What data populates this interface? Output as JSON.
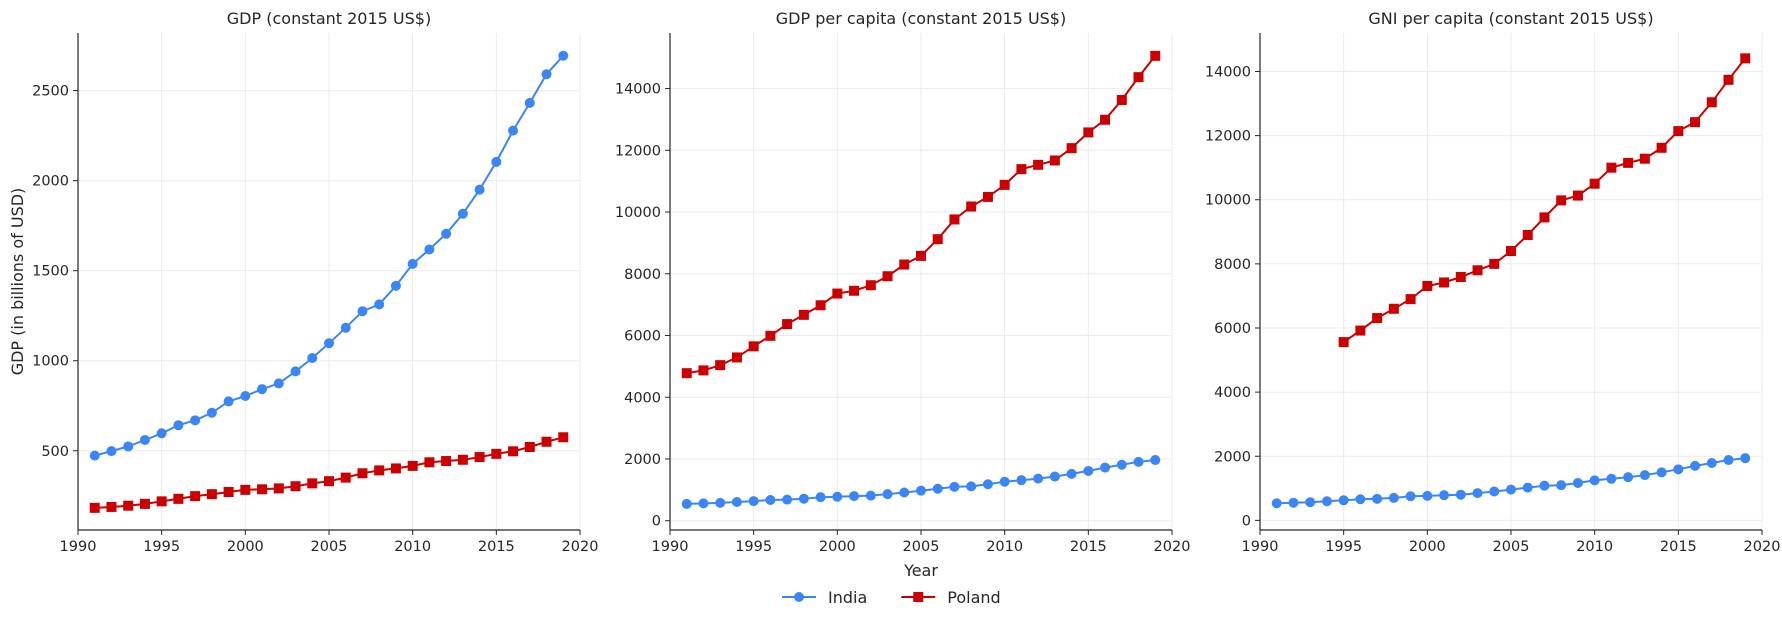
{
  "chart_data": [
    {
      "type": "line",
      "title": "GDP (constant 2015 US$)",
      "ylabel": "GDP (in billions of USD)",
      "xlabel": "",
      "xlim": [
        1990,
        2020
      ],
      "ylim": [
        60,
        2820
      ],
      "xticks": [
        1990,
        1995,
        2000,
        2005,
        2010,
        2015,
        2020
      ],
      "yticks": [
        500,
        1000,
        1500,
        2000,
        2500
      ],
      "grid": true,
      "series": [
        {
          "name": "India",
          "color": "#3b86f7",
          "marker": "circle",
          "x": [
            1991,
            1992,
            1993,
            1994,
            1995,
            1996,
            1997,
            1998,
            1999,
            2000,
            2001,
            2002,
            2003,
            2004,
            2005,
            2006,
            2007,
            2008,
            2009,
            2010,
            2011,
            2012,
            2013,
            2014,
            2015,
            2016,
            2017,
            2018,
            2019
          ],
          "y": [
            473,
            498,
            524,
            560,
            597,
            642,
            669,
            711,
            774,
            804,
            842,
            874,
            941,
            1015,
            1097,
            1183,
            1275,
            1313,
            1416,
            1538,
            1618,
            1705,
            1816,
            1950,
            2104,
            2278,
            2432,
            2591,
            2694
          ]
        },
        {
          "name": "Poland",
          "color": "#cc0000",
          "marker": "square",
          "x": [
            1991,
            1992,
            1993,
            1994,
            1995,
            1996,
            1997,
            1998,
            1999,
            2000,
            2001,
            2002,
            2003,
            2004,
            2005,
            2006,
            2007,
            2008,
            2009,
            2010,
            2011,
            2012,
            2013,
            2014,
            2015,
            2016,
            2017,
            2018,
            2019
          ],
          "y": [
            183,
            188,
            195,
            205,
            219,
            233,
            248,
            259,
            271,
            283,
            286,
            291,
            303,
            319,
            331,
            351,
            375,
            391,
            402,
            416,
            436,
            443,
            450,
            465,
            483,
            497,
            521,
            550,
            575
          ]
        }
      ]
    },
    {
      "type": "line",
      "title": "GDP per capita (constant 2015 US$)",
      "ylabel": "",
      "xlabel": "Year",
      "xlim": [
        1990,
        2020
      ],
      "ylim": [
        -300,
        15800
      ],
      "xticks": [
        1990,
        1995,
        2000,
        2005,
        2010,
        2015,
        2020
      ],
      "yticks": [
        0,
        2000,
        4000,
        6000,
        8000,
        10000,
        12000,
        14000
      ],
      "grid": true,
      "series": [
        {
          "name": "India",
          "color": "#3b86f7",
          "marker": "circle",
          "x": [
            1991,
            1992,
            1993,
            1994,
            1995,
            1996,
            1997,
            1998,
            1999,
            2000,
            2001,
            2002,
            2003,
            2004,
            2005,
            2006,
            2007,
            2008,
            2009,
            2010,
            2011,
            2012,
            2013,
            2014,
            2015,
            2016,
            2017,
            2018,
            2019
          ],
          "y": [
            545,
            562,
            578,
            607,
            637,
            671,
            684,
            714,
            764,
            777,
            799,
            813,
            863,
            915,
            974,
            1036,
            1098,
            1113,
            1182,
            1265,
            1314,
            1365,
            1432,
            1518,
            1613,
            1722,
            1814,
            1907,
            1966
          ]
        },
        {
          "name": "Poland",
          "color": "#cc0000",
          "marker": "square",
          "x": [
            1991,
            1992,
            1993,
            1994,
            1995,
            1996,
            1997,
            1998,
            1999,
            2000,
            2001,
            2002,
            2003,
            2004,
            2005,
            2006,
            2007,
            2008,
            2009,
            2010,
            2011,
            2012,
            2013,
            2014,
            2015,
            2016,
            2017,
            2018,
            2019
          ],
          "y": [
            4780,
            4870,
            5040,
            5290,
            5650,
            5990,
            6370,
            6670,
            6980,
            7360,
            7450,
            7630,
            7920,
            8300,
            8580,
            9120,
            9760,
            10180,
            10490,
            10880,
            11390,
            11530,
            11670,
            12070,
            12580,
            12990,
            13630,
            14370,
            15060
          ]
        }
      ]
    },
    {
      "type": "line",
      "title": "GNI per capita (constant 2015 US$)",
      "ylabel": "",
      "xlabel": "",
      "xlim": [
        1990,
        2020
      ],
      "ylim": [
        -300,
        15200
      ],
      "xticks": [
        1990,
        1995,
        2000,
        2005,
        2010,
        2015,
        2020
      ],
      "yticks": [
        0,
        2000,
        4000,
        6000,
        8000,
        10000,
        12000,
        14000
      ],
      "grid": true,
      "series": [
        {
          "name": "India",
          "color": "#3b86f7",
          "marker": "circle",
          "x": [
            1991,
            1992,
            1993,
            1994,
            1995,
            1996,
            1997,
            1998,
            1999,
            2000,
            2001,
            2002,
            2003,
            2004,
            2005,
            2006,
            2007,
            2008,
            2009,
            2010,
            2011,
            2012,
            2013,
            2014,
            2015,
            2016,
            2017,
            2018,
            2019
          ],
          "y": [
            535,
            551,
            567,
            596,
            626,
            659,
            672,
            701,
            751,
            765,
            786,
            801,
            851,
            902,
            961,
            1022,
            1083,
            1098,
            1167,
            1249,
            1297,
            1348,
            1413,
            1499,
            1592,
            1700,
            1790,
            1882,
            1940
          ]
        },
        {
          "name": "Poland",
          "color": "#cc0000",
          "marker": "square",
          "x": [
            1995,
            1996,
            1997,
            1998,
            1999,
            2000,
            2001,
            2002,
            2003,
            2004,
            2005,
            2006,
            2007,
            2008,
            2009,
            2010,
            2011,
            2012,
            2013,
            2014,
            2015,
            2016,
            2017,
            2018,
            2019
          ],
          "y": [
            5560,
            5920,
            6310,
            6600,
            6900,
            7310,
            7420,
            7590,
            7800,
            8000,
            8400,
            8900,
            9450,
            9980,
            10130,
            10500,
            11000,
            11150,
            11280,
            11620,
            12140,
            12420,
            13040,
            13740,
            14410
          ]
        }
      ]
    }
  ],
  "legend": {
    "placement": "bottom-center",
    "entries": [
      "India",
      "Poland"
    ]
  }
}
